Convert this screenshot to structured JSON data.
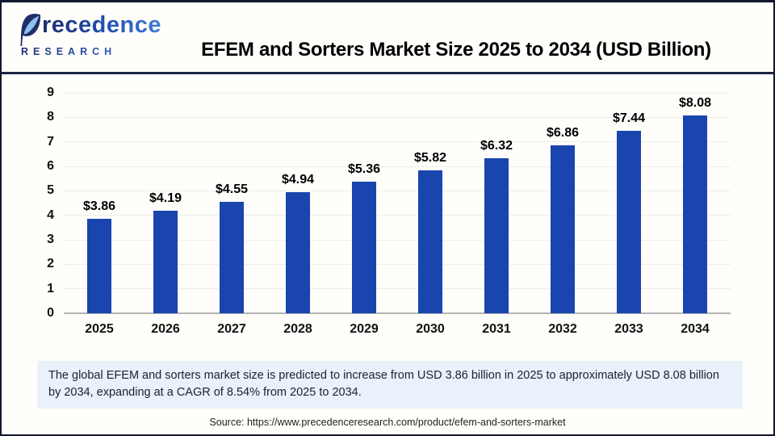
{
  "header": {
    "logo": {
      "brand_rest": "recedence",
      "subtitle": "RESEARCH"
    },
    "title": "EFEM and Sorters Market Size 2025 to 2034 (USD Billion)"
  },
  "chart_data": {
    "type": "bar",
    "title": "EFEM and Sorters Market Size 2025 to 2034 (USD Billion)",
    "categories": [
      "2025",
      "2026",
      "2027",
      "2028",
      "2029",
      "2030",
      "2031",
      "2032",
      "2033",
      "2034"
    ],
    "values": [
      3.86,
      4.19,
      4.55,
      4.94,
      5.36,
      5.82,
      6.32,
      6.86,
      7.44,
      8.08
    ],
    "value_labels": [
      "$3.86",
      "$4.19",
      "$4.55",
      "$4.94",
      "$5.36",
      "$5.82",
      "$6.32",
      "$6.86",
      "$7.44",
      "$8.08"
    ],
    "unit": "USD Billion",
    "xlabel": "",
    "ylabel": "",
    "ylim": [
      0,
      9
    ],
    "yticks": [
      0,
      1,
      2,
      3,
      4,
      5,
      6,
      7,
      8,
      9
    ],
    "grid": "horizontal",
    "legend": "none",
    "bar_color": "#1a44ae"
  },
  "note": {
    "text": "The global EFEM and sorters market size is predicted to increase from USD 3.86 billion in 2025 to approximately USD 8.08 billion by 2034, expanding at a CAGR of 8.54% from 2025 to 2034."
  },
  "source": {
    "text": "Source: https://www.precedenceresearch.com/product/efem-and-sorters-market"
  },
  "colors": {
    "bar": "#1a44ae",
    "accent_navy": "#1b2448",
    "note_bg": "#e9f1fb"
  }
}
